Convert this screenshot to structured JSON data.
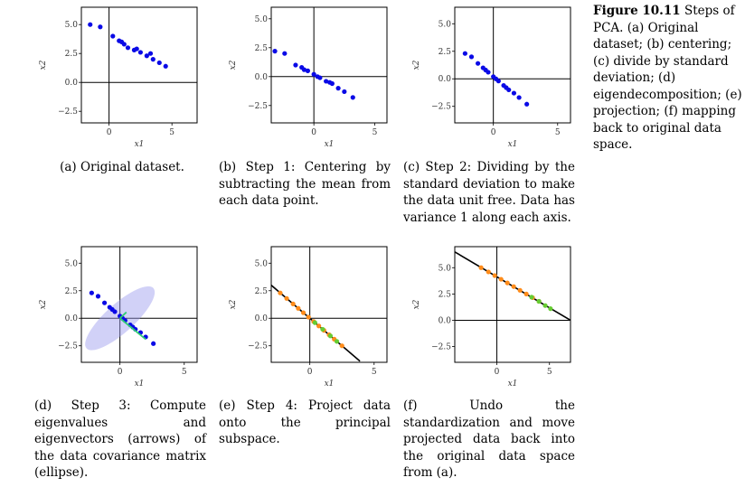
{
  "figure_caption": {
    "label": "Figure 10.11",
    "text": " Steps of PCA. (a) Original dataset; (b) centering; (c) divide by standard deviation; (d) eigendecomposition; (e) projection; (f) mapping back to original data space."
  },
  "chart_data": [
    {
      "type": "scatter",
      "panel": "a",
      "xlabel": "x1",
      "ylabel": "x2",
      "xticks": [
        "0",
        "5"
      ],
      "yticks": [
        "5.0",
        "2.5",
        "0.0",
        "−2.5"
      ],
      "xlim": [
        -2.2,
        7
      ],
      "ylim": [
        -3.5,
        6.5
      ],
      "series": [
        {
          "color": "#0a0ae6",
          "x": [
            -1.5,
            -0.7,
            0.3,
            0.8,
            1.2,
            1.5,
            2.0,
            2.5,
            3.0,
            3.5,
            4.0,
            4.5,
            1.0,
            2.2,
            3.3
          ],
          "y": [
            5.0,
            4.8,
            4.0,
            3.6,
            3.3,
            3.0,
            2.8,
            2.6,
            2.3,
            2.0,
            1.7,
            1.4,
            3.5,
            2.9,
            2.5
          ]
        }
      ]
    },
    {
      "type": "scatter",
      "panel": "b",
      "xlabel": "x1",
      "ylabel": "x2",
      "xticks": [
        "0",
        "5"
      ],
      "yticks": [
        "5.0",
        "2.5",
        "0.0",
        "−2.5"
      ],
      "xlim": [
        -3.5,
        6
      ],
      "ylim": [
        -4,
        6
      ],
      "series": [
        {
          "color": "#0a0ae6",
          "x": [
            -3.2,
            -2.4,
            -1.5,
            -1.0,
            -0.5,
            0.0,
            0.5,
            1.0,
            1.5,
            2.0,
            2.5,
            3.2,
            -0.8,
            0.3,
            1.3
          ],
          "y": [
            2.2,
            2.0,
            1.0,
            0.8,
            0.5,
            0.2,
            -0.1,
            -0.4,
            -0.6,
            -1.0,
            -1.3,
            -1.8,
            0.6,
            0.0,
            -0.5
          ]
        }
      ]
    },
    {
      "type": "scatter",
      "panel": "c",
      "xlabel": "x1",
      "ylabel": "x2",
      "xticks": [
        "0",
        "5"
      ],
      "yticks": [
        "5.0",
        "2.5",
        "0.0",
        "−2.5"
      ],
      "xlim": [
        -3,
        6
      ],
      "ylim": [
        -4,
        6.5
      ],
      "series": [
        {
          "color": "#0a0ae6",
          "x": [
            -2.2,
            -1.7,
            -1.2,
            -0.8,
            -0.4,
            0.0,
            0.4,
            0.8,
            1.2,
            1.6,
            2.0,
            2.6,
            -0.6,
            0.2,
            1.0
          ],
          "y": [
            2.3,
            2.0,
            1.4,
            1.0,
            0.6,
            0.2,
            -0.2,
            -0.6,
            -1.0,
            -1.3,
            -1.7,
            -2.3,
            0.8,
            0.0,
            -0.8
          ]
        }
      ]
    },
    {
      "type": "scatter",
      "panel": "d",
      "xlabel": "x1",
      "ylabel": "x2",
      "xticks": [
        "0",
        "5"
      ],
      "yticks": [
        "5.0",
        "2.5",
        "0.0",
        "−2.5"
      ],
      "xlim": [
        -3,
        6
      ],
      "ylim": [
        -4,
        6.5
      ],
      "series": [
        {
          "color": "#0a0ae6",
          "x": [
            -2.2,
            -1.7,
            -1.2,
            -0.8,
            -0.4,
            0.0,
            0.4,
            0.8,
            1.2,
            1.6,
            2.0,
            2.6,
            -0.6,
            0.2,
            1.0
          ],
          "y": [
            2.3,
            2.0,
            1.4,
            1.0,
            0.6,
            0.2,
            -0.2,
            -0.6,
            -1.0,
            -1.3,
            -1.7,
            -2.3,
            0.8,
            0.0,
            -0.8
          ]
        }
      ],
      "ellipse": {
        "cx": 0,
        "cy": 0,
        "rx": 3.5,
        "ry": 1.3,
        "angle_deg": -42,
        "color": "#9999ee"
      },
      "arrows": [
        {
          "x1": 0,
          "y1": 0,
          "x2": 2.0,
          "y2": -1.9,
          "color": "#2ecc71"
        },
        {
          "x1": 0,
          "y1": 0,
          "x2": 0.5,
          "y2": 0.55,
          "color": "#2ecc71"
        }
      ]
    },
    {
      "type": "scatter",
      "panel": "e",
      "xlabel": "x1",
      "ylabel": "x2",
      "xticks": [
        "0",
        "5"
      ],
      "yticks": [
        "5.0",
        "2.5",
        "0.0",
        "−2.5"
      ],
      "xlim": [
        -3,
        6
      ],
      "ylim": [
        -4,
        6.5
      ],
      "line": {
        "x1": -3,
        "y1": 3.0,
        "x2": 3.9,
        "y2": -3.9,
        "color": "#000000"
      },
      "series": [
        {
          "color": "#ff8c1a",
          "x": [
            -2.3,
            -1.8,
            -1.3,
            -0.9,
            -0.5,
            -0.1,
            0.3,
            0.7,
            1.1,
            1.5,
            1.9,
            2.5
          ],
          "y": [
            2.3,
            1.8,
            1.3,
            0.9,
            0.5,
            0.1,
            -0.3,
            -0.7,
            -1.1,
            -1.5,
            -1.9,
            -2.5
          ]
        },
        {
          "color": "#66cc33",
          "x": [
            0.4,
            1.0,
            1.6,
            2.1
          ],
          "y": [
            -0.4,
            -1.0,
            -1.6,
            -2.1
          ]
        }
      ]
    },
    {
      "type": "scatter",
      "panel": "f",
      "xlabel": "x1",
      "ylabel": "x2",
      "xticks": [
        "0",
        "5"
      ],
      "yticks": [
        "5.0",
        "2.5",
        "0.0",
        "−2.5"
      ],
      "xlim": [
        -4,
        7
      ],
      "ylim": [
        -4,
        7
      ],
      "line": {
        "x1": -4,
        "y1": 6.5,
        "x2": 7,
        "y2": 0.0,
        "color": "#000000"
      },
      "series": [
        {
          "color": "#ff8c1a",
          "x": [
            -1.5,
            -0.8,
            -0.2,
            0.4,
            1.0,
            1.6,
            2.2,
            2.8,
            3.4,
            4.0
          ],
          "y": [
            5.0,
            4.6,
            4.25,
            3.9,
            3.55,
            3.2,
            2.85,
            2.5,
            2.15,
            1.8
          ]
        },
        {
          "color": "#66cc33",
          "x": [
            3.3,
            4.0,
            4.6,
            5.1
          ],
          "y": [
            2.2,
            1.8,
            1.4,
            1.1
          ]
        }
      ]
    }
  ],
  "captions": {
    "a": "(a) Original dataset.",
    "b": "(b) Step 1: Centering by subtracting the mean from each data point.",
    "c": "(c) Step 2: Dividing by the standard deviation to make the data unit free. Data has variance 1 along each axis.",
    "d": "(d) Step 3: Compute eigenvalues and eigenvectors (arrows) of the data covariance matrix (ellipse).",
    "e": "(e) Step 4: Project data onto the principal subspace.",
    "f": "(f) Undo the standardization and move projected data back into the original data space from (a)."
  }
}
